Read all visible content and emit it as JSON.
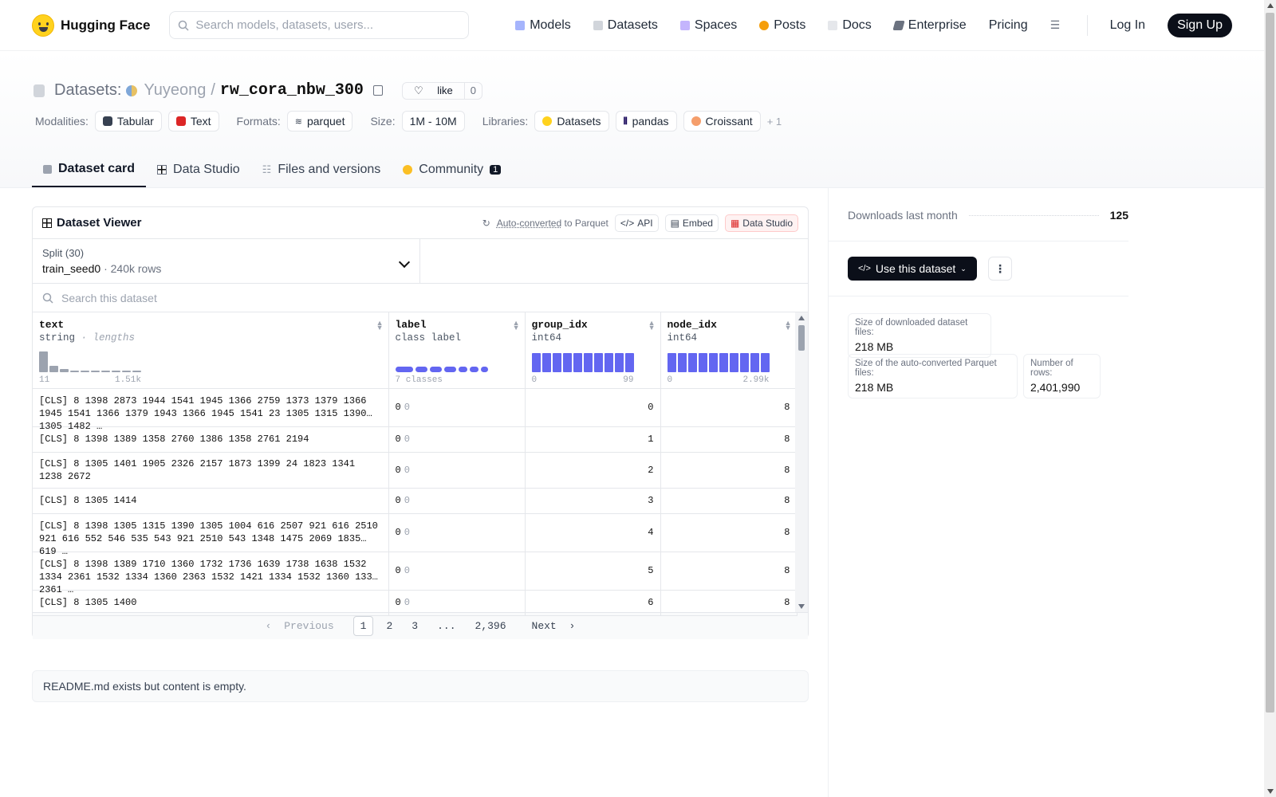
{
  "nav": {
    "brand": "Hugging Face",
    "search_placeholder": "Search models, datasets, users...",
    "links": [
      "Models",
      "Datasets",
      "Spaces",
      "Posts",
      "Docs",
      "Enterprise",
      "Pricing"
    ],
    "login": "Log In",
    "signup": "Sign Up"
  },
  "header": {
    "section": "Datasets:",
    "user": "Yuyeong",
    "separator": "/",
    "repo": "rw_cora_nbw_300",
    "like_label": "like",
    "like_count": "0",
    "modalities_label": "Modalities:",
    "modalities": [
      "Tabular",
      "Text"
    ],
    "formats_label": "Formats:",
    "formats": [
      "parquet"
    ],
    "size_label": "Size:",
    "size": "1M - 10M",
    "libraries_label": "Libraries:",
    "libraries": [
      "Datasets",
      "pandas",
      "Croissant"
    ],
    "more_libraries": "+ 1"
  },
  "tabs": [
    {
      "label": "Dataset card"
    },
    {
      "label": "Data Studio"
    },
    {
      "label": "Files and versions"
    },
    {
      "label": "Community",
      "badge": "1"
    }
  ],
  "viewer": {
    "title": "Dataset Viewer",
    "auto_converted": "Auto-converted",
    "to_parquet": "to Parquet",
    "api": "API",
    "embed": "Embed",
    "data_studio": "Data Studio",
    "split_label": "Split (30)",
    "split_value": "train_seed0",
    "split_dot": "·",
    "split_rows": "240k rows",
    "search_placeholder": "Search this dataset",
    "columns": [
      {
        "name": "text",
        "type": "string",
        "type_extra": "· lengths",
        "axis_min": "11",
        "axis_max": "1.51k"
      },
      {
        "name": "label",
        "type": "class label",
        "axis_min": "7 classes"
      },
      {
        "name": "group_idx",
        "type": "int64",
        "axis_min": "0",
        "axis_max": "99"
      },
      {
        "name": "node_idx",
        "type": "int64",
        "axis_min": "0",
        "axis_max": "2.99k"
      }
    ],
    "text_hist": [
      1.0,
      0.3,
      0.15,
      0.08,
      0.05,
      0.04,
      0.03,
      0.03,
      0.02,
      0.02
    ],
    "label_dist": [
      0.17,
      0.12,
      0.12,
      0.12,
      0.09,
      0.09,
      0.07
    ],
    "group_hist": [
      1,
      1,
      1,
      1,
      1,
      1,
      1,
      1,
      1,
      1
    ],
    "node_hist": [
      1,
      1,
      1,
      1,
      1,
      1,
      1,
      1,
      1,
      1
    ],
    "rows": [
      {
        "text": "[CLS] 8 1398 2873 1944 1541 1945 1366 2759 1373 1379 1366 1945 1541 1366 1379 1943 1366 1945 1541 23 1305 1315 1390 1305 1482 …",
        "label": "0",
        "label_name": "0",
        "group_idx": "0",
        "node_idx": "8"
      },
      {
        "text": "[CLS] 8 1398 1389 1358 2760 1386 1358 2761 2194",
        "label": "0",
        "label_name": "0",
        "group_idx": "1",
        "node_idx": "8"
      },
      {
        "text": "[CLS] 8 1305 1401 1905 2326 2157 1873 1399 24 1823 1341 1238 2672",
        "label": "0",
        "label_name": "0",
        "group_idx": "2",
        "node_idx": "8"
      },
      {
        "text": "[CLS] 8 1305 1414",
        "label": "0",
        "label_name": "0",
        "group_idx": "3",
        "node_idx": "8"
      },
      {
        "text": "[CLS] 8 1398 1305 1315 1390 1305 1004 616 2507 921 616 2510 921 616 552 546 535 543 921 2510 543 1348 1475 2069 1835 619 …",
        "label": "0",
        "label_name": "0",
        "group_idx": "4",
        "node_idx": "8"
      },
      {
        "text": "[CLS] 8 1398 1389 1710 1360 1732 1736 1639 1738 1638 1532 1334 2361 1532 1334 1360 2363 1532 1421 1334 1532 1360 1334 2361 …",
        "label": "0",
        "label_name": "0",
        "group_idx": "5",
        "node_idx": "8"
      },
      {
        "text": "[CLS] 8 1305 1400",
        "label": "0",
        "label_name": "0",
        "group_idx": "6",
        "node_idx": "8"
      }
    ],
    "pager": {
      "previous": "Previous",
      "pages": [
        "1",
        "2",
        "3",
        "...",
        "2,396"
      ],
      "next": "Next"
    }
  },
  "readme": "README.md exists but content is empty.",
  "sidebar": {
    "downloads_label": "Downloads last month",
    "downloads_value": "125",
    "use_button": "Use this dataset",
    "stats": [
      {
        "label": "Size of downloaded dataset files:",
        "value": "218 MB"
      },
      {
        "label": "Size of the auto-converted Parquet files:",
        "value": "218 MB"
      },
      {
        "label": "Number of rows:",
        "value": "2,401,990"
      }
    ]
  },
  "colors": {
    "accent": "#6366f1",
    "dark": "#0b0f19"
  }
}
